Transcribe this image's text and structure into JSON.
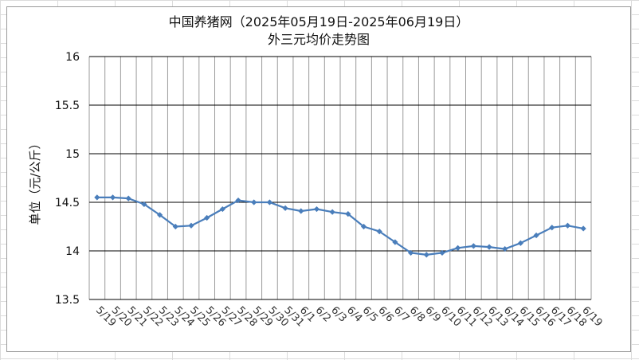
{
  "chart_data": {
    "type": "line",
    "title": "中国养猪网（2025年05月19日-2025年06月19日）",
    "subtitle": "外三元均价走势图",
    "ylabel": "单位（元/公斤）",
    "xlabel": "",
    "ylim": [
      13.5,
      16
    ],
    "yticks": [
      "13.5",
      "14",
      "14.5",
      "15",
      "15.5",
      "16"
    ],
    "ytick_values": [
      13.5,
      14,
      14.5,
      15,
      15.5,
      16
    ],
    "grid": "horizontal",
    "legend": "none",
    "categories": [
      "5/19",
      "5/20",
      "5/21",
      "5/22",
      "5/23",
      "5/24",
      "5/25",
      "5/26",
      "5/27",
      "5/28",
      "5/29",
      "5/30",
      "5/31",
      "6/1",
      "6/2",
      "6/3",
      "6/4",
      "6/5",
      "6/6",
      "6/7",
      "6/8",
      "6/9",
      "6/10",
      "6/11",
      "6/12",
      "6/13",
      "6/14",
      "6/15",
      "6/16",
      "6/17",
      "6/18",
      "6/19"
    ],
    "series": [
      {
        "values": [
          14.55,
          14.55,
          14.54,
          14.48,
          14.37,
          14.25,
          14.26,
          14.34,
          14.43,
          14.52,
          14.5,
          14.5,
          14.44,
          14.41,
          14.43,
          14.4,
          14.38,
          14.25,
          14.2,
          14.09,
          13.98,
          13.96,
          13.98,
          14.03,
          14.05,
          14.04,
          14.02,
          14.08,
          14.16,
          14.24,
          14.26,
          14.23
        ],
        "color": "#4a7ebb"
      }
    ]
  }
}
